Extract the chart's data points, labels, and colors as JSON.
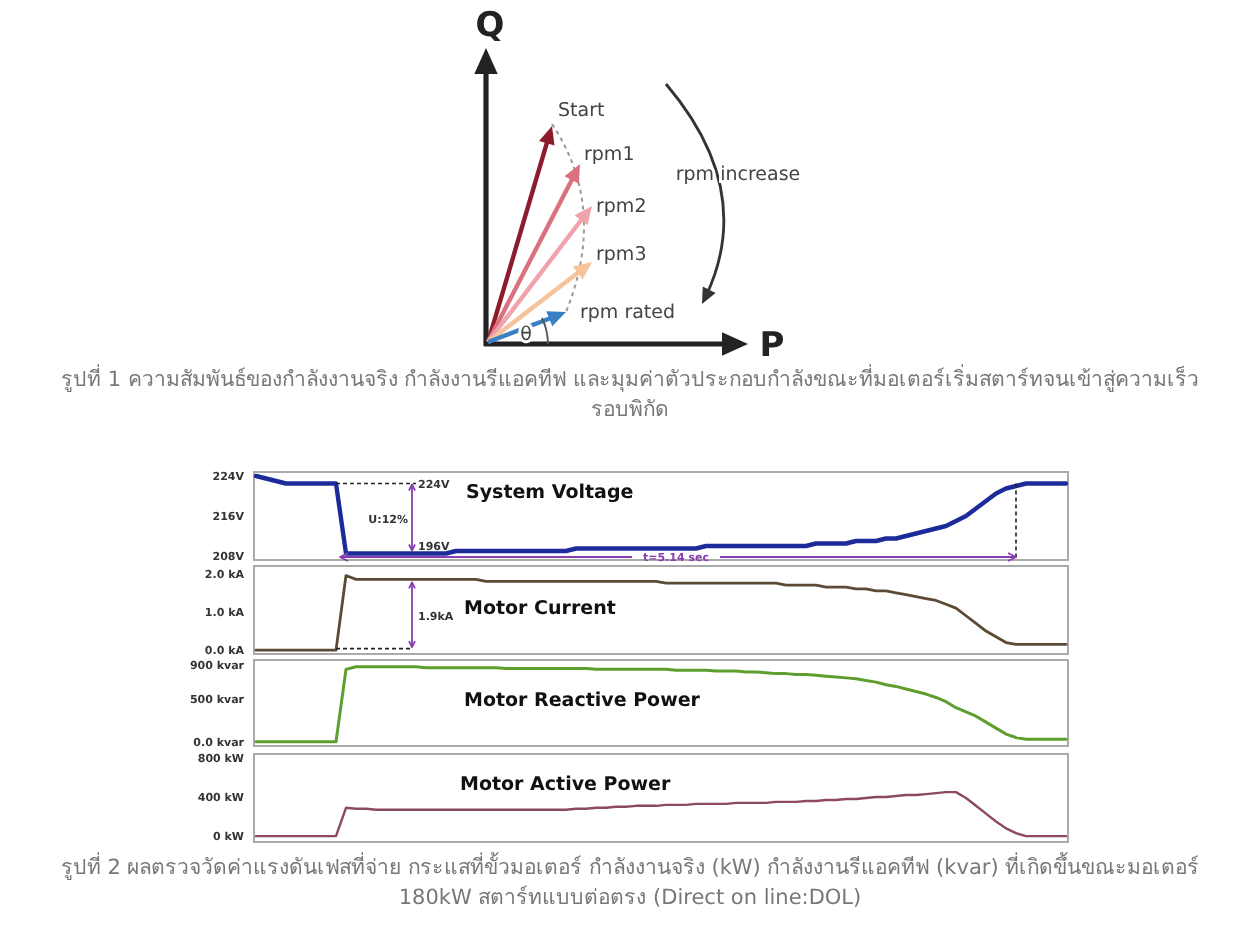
{
  "chart_data": [
    {
      "type": "other",
      "xlabel": "P",
      "ylabel": "Q",
      "annotations": [
        "Start",
        "rpm1",
        "rpm2",
        "rpm3",
        "rpm rated",
        "rpm increase",
        "θ",
        "รูปที่ 1 ความสัมพันธ์ของกำลังงานจริง กำลังงานรีแอคทีฟ และมุมค่าตัวประกอบกำลังขณะที่มอเตอร์เริ่มสตาร์ทจนเข้าสู่ความเร็วรอบพิกัด"
      ]
    },
    {
      "type": "line",
      "title": "System Voltage",
      "categories": [
        null,
        null,
        null,
        null,
        null,
        null,
        null,
        null,
        null,
        null,
        null,
        null,
        null,
        null,
        null,
        null,
        null,
        null,
        null,
        null,
        null,
        null,
        null,
        null,
        null,
        null,
        null,
        null,
        null,
        null,
        null,
        null,
        null,
        null,
        null,
        null,
        null,
        null,
        null,
        null,
        null,
        null,
        null,
        null,
        null,
        null,
        null,
        null,
        null,
        null,
        null,
        null,
        null,
        null,
        null,
        null,
        null,
        null,
        null,
        null,
        null,
        null,
        null,
        null,
        null,
        null,
        null,
        null,
        null,
        null,
        null,
        null,
        null,
        null,
        null,
        null,
        null,
        null,
        null,
        null,
        null,
        null
      ],
      "series": [
        {
          "color": "#1c2a9a",
          "values": [
            224,
            223.5,
            223,
            222.5,
            222.5,
            222.5,
            222.5,
            222.5,
            222.5,
            208.5,
            208.5,
            208.5,
            208.5,
            208.5,
            208.5,
            208.5,
            208.5,
            208.5,
            208.5,
            208.5,
            209,
            209,
            209,
            209,
            209,
            209,
            209,
            209,
            209,
            209,
            209,
            209,
            209.5,
            209.5,
            209.5,
            209.5,
            209.5,
            209.5,
            209.5,
            209.5,
            209.5,
            209.5,
            209.5,
            209.5,
            209.5,
            210,
            210,
            210,
            210,
            210,
            210,
            210,
            210,
            210,
            210,
            210,
            210.5,
            210.5,
            210.5,
            210.5,
            211,
            211,
            211,
            211.5,
            211.5,
            212,
            212.5,
            213,
            213.5,
            214,
            215,
            216,
            217.5,
            219,
            220.5,
            221.5,
            222,
            222.5,
            222.5,
            222.5,
            222.5,
            222.5
          ]
        }
      ],
      "ylim": [
        207.2,
        224.8
      ],
      "yticks": [
        {
          "value": 224,
          "label": "224V"
        },
        {
          "value": 216,
          "label": "216V"
        },
        {
          "value": 208,
          "label": "208V"
        }
      ],
      "tick_labels": "y",
      "annotations": [
        "224V",
        "U:12%",
        "196V",
        "t=5.14 sec"
      ]
    },
    {
      "type": "line",
      "title": "Motor Current",
      "categories": [
        null,
        null,
        null,
        null,
        null,
        null,
        null,
        null,
        null,
        null,
        null,
        null,
        null,
        null,
        null,
        null,
        null,
        null,
        null,
        null,
        null,
        null,
        null,
        null,
        null,
        null,
        null,
        null,
        null,
        null,
        null,
        null,
        null,
        null,
        null,
        null,
        null,
        null,
        null,
        null,
        null,
        null,
        null,
        null,
        null,
        null,
        null,
        null,
        null,
        null,
        null,
        null,
        null,
        null,
        null,
        null,
        null,
        null,
        null,
        null,
        null,
        null,
        null,
        null,
        null,
        null,
        null,
        null,
        null,
        null,
        null,
        null,
        null,
        null,
        null,
        null,
        null,
        null,
        null,
        null,
        null,
        null
      ],
      "series": [
        {
          "color": "#5b4a36",
          "values": [
            0,
            0,
            0,
            0,
            0,
            0,
            0,
            0,
            0,
            1.95,
            1.85,
            1.85,
            1.85,
            1.85,
            1.85,
            1.85,
            1.85,
            1.85,
            1.85,
            1.85,
            1.85,
            1.85,
            1.85,
            1.8,
            1.8,
            1.8,
            1.8,
            1.8,
            1.8,
            1.8,
            1.8,
            1.8,
            1.8,
            1.8,
            1.8,
            1.8,
            1.8,
            1.8,
            1.8,
            1.8,
            1.8,
            1.75,
            1.75,
            1.75,
            1.75,
            1.75,
            1.75,
            1.75,
            1.75,
            1.75,
            1.75,
            1.75,
            1.75,
            1.7,
            1.7,
            1.7,
            1.7,
            1.65,
            1.65,
            1.65,
            1.6,
            1.6,
            1.55,
            1.55,
            1.5,
            1.45,
            1.4,
            1.35,
            1.3,
            1.2,
            1.1,
            0.9,
            0.7,
            0.5,
            0.35,
            0.2,
            0.15,
            0.15,
            0.15,
            0.15,
            0.15,
            0.15
          ]
        }
      ],
      "ylim": [
        -0.1,
        2.2
      ],
      "yticks": [
        {
          "value": 2,
          "label": "2.0 kA"
        },
        {
          "value": 1,
          "label": "1.0 kA"
        },
        {
          "value": 0,
          "label": "0.0 kA"
        }
      ],
      "tick_labels": "y",
      "annotations": [
        "1.9kA"
      ]
    },
    {
      "type": "line",
      "title": "Motor Reactive Power",
      "categories": [
        null,
        null,
        null,
        null,
        null,
        null,
        null,
        null,
        null,
        null,
        null,
        null,
        null,
        null,
        null,
        null,
        null,
        null,
        null,
        null,
        null,
        null,
        null,
        null,
        null,
        null,
        null,
        null,
        null,
        null,
        null,
        null,
        null,
        null,
        null,
        null,
        null,
        null,
        null,
        null,
        null,
        null,
        null,
        null,
        null,
        null,
        null,
        null,
        null,
        null,
        null,
        null,
        null,
        null,
        null,
        null,
        null,
        null,
        null,
        null,
        null,
        null,
        null,
        null,
        null,
        null,
        null,
        null,
        null,
        null,
        null,
        null,
        null,
        null,
        null,
        null,
        null,
        null,
        null,
        null,
        null,
        null
      ],
      "series": [
        {
          "color": "#5e9e2e",
          "values": [
            0,
            0,
            0,
            0,
            0,
            0,
            0,
            0,
            0,
            850,
            880,
            880,
            880,
            880,
            880,
            880,
            880,
            870,
            870,
            870,
            870,
            870,
            870,
            870,
            870,
            860,
            860,
            860,
            860,
            860,
            860,
            860,
            860,
            860,
            850,
            850,
            850,
            850,
            850,
            850,
            850,
            850,
            840,
            840,
            840,
            840,
            830,
            830,
            830,
            820,
            820,
            810,
            800,
            800,
            790,
            790,
            780,
            770,
            760,
            750,
            740,
            720,
            700,
            670,
            650,
            620,
            590,
            560,
            520,
            470,
            400,
            350,
            300,
            230,
            160,
            90,
            50,
            30,
            30,
            30,
            30,
            30
          ]
        }
      ],
      "ylim": [
        -50,
        960
      ],
      "yticks": [
        {
          "value": 900,
          "label": "900 kvar"
        },
        {
          "value": 500,
          "label": "500 kvar"
        },
        {
          "value": 0,
          "label": "0.0 kvar"
        }
      ],
      "tick_labels": "y"
    },
    {
      "type": "line",
      "title": "Motor Active Power",
      "categories": [
        null,
        null,
        null,
        null,
        null,
        null,
        null,
        null,
        null,
        null,
        null,
        null,
        null,
        null,
        null,
        null,
        null,
        null,
        null,
        null,
        null,
        null,
        null,
        null,
        null,
        null,
        null,
        null,
        null,
        null,
        null,
        null,
        null,
        null,
        null,
        null,
        null,
        null,
        null,
        null,
        null,
        null,
        null,
        null,
        null,
        null,
        null,
        null,
        null,
        null,
        null,
        null,
        null,
        null,
        null,
        null,
        null,
        null,
        null,
        null,
        null,
        null,
        null,
        null,
        null,
        null,
        null,
        null,
        null,
        null,
        null,
        null,
        null,
        null,
        null,
        null,
        null,
        null,
        null,
        null,
        null,
        null
      ],
      "series": [
        {
          "color": "#8c4a5c",
          "values": [
            0,
            0,
            0,
            0,
            0,
            0,
            0,
            0,
            0,
            290,
            280,
            280,
            270,
            270,
            270,
            270,
            270,
            270,
            270,
            270,
            270,
            270,
            270,
            270,
            270,
            270,
            270,
            270,
            270,
            270,
            270,
            270,
            280,
            280,
            290,
            290,
            300,
            300,
            310,
            310,
            310,
            320,
            320,
            320,
            330,
            330,
            330,
            330,
            340,
            340,
            340,
            340,
            350,
            350,
            350,
            360,
            360,
            370,
            370,
            380,
            380,
            390,
            400,
            400,
            410,
            420,
            420,
            430,
            440,
            450,
            450,
            390,
            310,
            230,
            150,
            80,
            30,
            0,
            0,
            0,
            0,
            0
          ]
        }
      ],
      "ylim": [
        -60,
        840
      ],
      "yticks": [
        {
          "value": 800,
          "label": "800 kW"
        },
        {
          "value": 400,
          "label": "400 kW"
        },
        {
          "value": 0,
          "label": "0 kW"
        }
      ],
      "tick_labels": "y",
      "annotations": [
        "รูปที่ 2 ผลตรวจวัดค่าแรงดันเฟสที่จ่าย กระแสที่ขั้วมอเตอร์ กำลังงานจริง (kW) กำลังงานรีแอคทีฟ (kvar) ที่เกิดขึ้นขณะมอเตอร์ 180kW สตาร์ทแบบต่อตรง (Direct on line:DOL)"
      ]
    }
  ]
}
